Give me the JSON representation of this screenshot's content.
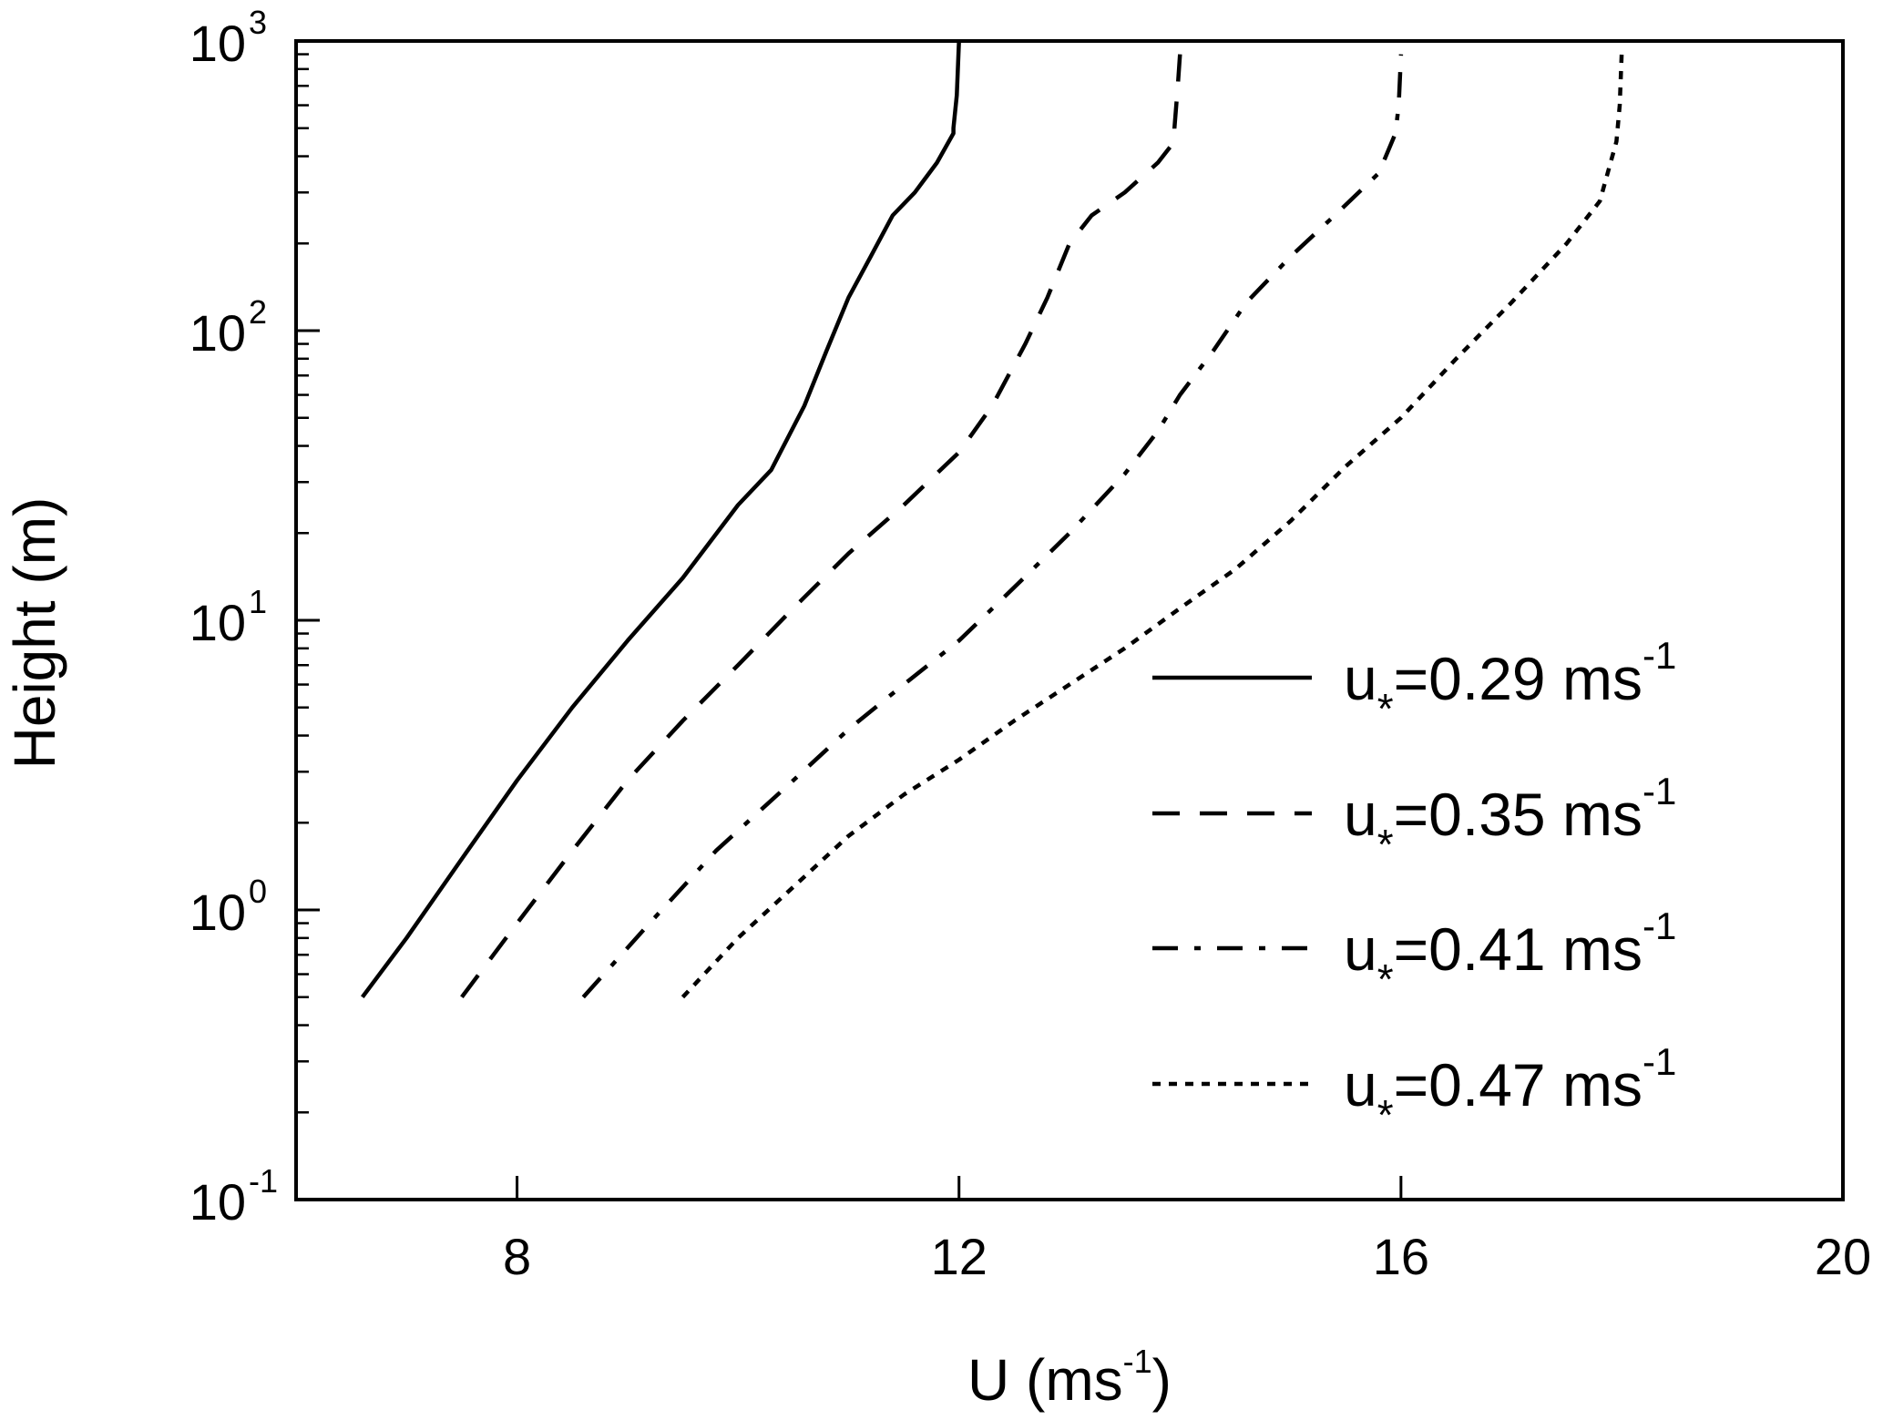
{
  "chart_data": {
    "type": "line",
    "xlabel": {
      "base": "U (ms",
      "sup": "-1",
      "tail": ")"
    },
    "ylabel": "Height (m)",
    "xlim": [
      6,
      20
    ],
    "ylim": [
      0.1,
      1000
    ],
    "yscale": "log",
    "xticks": [
      8,
      12,
      16,
      20
    ],
    "yticks": [
      {
        "value": 0.1,
        "base": "10",
        "exp": "-1"
      },
      {
        "value": 1,
        "base": "10",
        "exp": "0"
      },
      {
        "value": 10,
        "base": "10",
        "exp": "1"
      },
      {
        "value": 100,
        "base": "10",
        "exp": "2"
      },
      {
        "value": 1000,
        "base": "10",
        "exp": "3"
      }
    ],
    "grid": false,
    "legend_position": "bottom-right",
    "series": [
      {
        "label": {
          "pre": "u",
          "sub": "*",
          "mid": "=0.29 ms",
          "sup": "-1"
        },
        "style": "solid",
        "points": [
          [
            6.6,
            0.5
          ],
          [
            7,
            0.8
          ],
          [
            7.5,
            1.5
          ],
          [
            8,
            2.8
          ],
          [
            8.5,
            5
          ],
          [
            9,
            8.5
          ],
          [
            9.5,
            14
          ],
          [
            10,
            25
          ],
          [
            10.3,
            33
          ],
          [
            10.6,
            55
          ],
          [
            10.8,
            85
          ],
          [
            11,
            130
          ],
          [
            11.2,
            180
          ],
          [
            11.4,
            250
          ],
          [
            11.6,
            300
          ],
          [
            11.8,
            380
          ],
          [
            11.95,
            480
          ],
          [
            11.95,
            500
          ],
          [
            11.98,
            650
          ],
          [
            12,
            1000
          ]
        ]
      },
      {
        "label": {
          "pre": "u",
          "sub": "*",
          "mid": "=0.35 ms",
          "sup": "-1"
        },
        "style": "dashed",
        "points": [
          [
            7.5,
            0.5
          ],
          [
            8,
            0.9
          ],
          [
            8.5,
            1.6
          ],
          [
            9,
            2.8
          ],
          [
            9.5,
            4.5
          ],
          [
            10,
            7
          ],
          [
            10.5,
            11
          ],
          [
            11,
            17
          ],
          [
            11.5,
            25
          ],
          [
            12,
            38
          ],
          [
            12.3,
            55
          ],
          [
            12.6,
            90
          ],
          [
            12.8,
            130
          ],
          [
            13,
            200
          ],
          [
            13.2,
            250
          ],
          [
            13.5,
            300
          ],
          [
            13.8,
            380
          ],
          [
            13.95,
            450
          ],
          [
            13.95,
            500
          ],
          [
            13.98,
            700
          ],
          [
            14,
            900
          ]
        ]
      },
      {
        "label": {
          "pre": "u",
          "sub": "*",
          "mid": "=0.41 ms",
          "sup": "-1"
        },
        "style": "dashdot",
        "points": [
          [
            8.6,
            0.5
          ],
          [
            9.2,
            0.9
          ],
          [
            9.8,
            1.6
          ],
          [
            10.5,
            2.8
          ],
          [
            11,
            4.2
          ],
          [
            11.5,
            6
          ],
          [
            12,
            8.5
          ],
          [
            12.5,
            13
          ],
          [
            13,
            20
          ],
          [
            13.5,
            32
          ],
          [
            13.8,
            45
          ],
          [
            14,
            60
          ],
          [
            14.3,
            85
          ],
          [
            14.6,
            125
          ],
          [
            15,
            180
          ],
          [
            15.4,
            250
          ],
          [
            15.8,
            350
          ],
          [
            15.95,
            480
          ],
          [
            15.98,
            600
          ],
          [
            16,
            900
          ]
        ]
      },
      {
        "label": {
          "pre": "u",
          "sub": "*",
          "mid": "=0.47 ms",
          "sup": "-1"
        },
        "style": "dotted",
        "points": [
          [
            9.5,
            0.5
          ],
          [
            10,
            0.8
          ],
          [
            10.5,
            1.2
          ],
          [
            11,
            1.8
          ],
          [
            11.5,
            2.5
          ],
          [
            12,
            3.3
          ],
          [
            12.5,
            4.5
          ],
          [
            13,
            6
          ],
          [
            13.5,
            8
          ],
          [
            14,
            11
          ],
          [
            14.5,
            15
          ],
          [
            15,
            22
          ],
          [
            15.5,
            34
          ],
          [
            16,
            50
          ],
          [
            16.5,
            80
          ],
          [
            17,
            125
          ],
          [
            17.5,
            200
          ],
          [
            17.8,
            280
          ],
          [
            17.95,
            450
          ],
          [
            17.98,
            600
          ],
          [
            18,
            950
          ]
        ]
      }
    ]
  }
}
